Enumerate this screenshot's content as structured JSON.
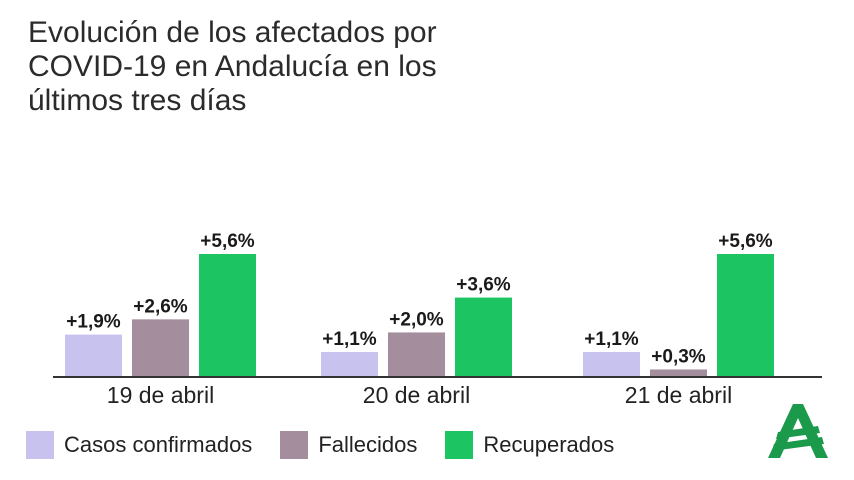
{
  "title": "Evolución de los afectados por COVID-19 en Andalucía en los últimos tres días",
  "colors": {
    "casos": "#c7c3ee",
    "fallecidos": "#a48e9d",
    "recuperados": "#1dc462",
    "axis": "#333333",
    "logo": "#1a9a4a"
  },
  "legend": [
    {
      "label": "Casos confirmados",
      "color": "#c7c3ee"
    },
    {
      "label": "Fallecidos",
      "color": "#a48e9d"
    },
    {
      "label": "Recuperados",
      "color": "#1dc462"
    }
  ],
  "logo_icon": "junta-de-andalucia-logo",
  "chart_data": {
    "type": "bar",
    "title": "Evolución de los afectados por COVID-19 en Andalucía en los últimos tres días",
    "xlabel": "",
    "ylabel": "",
    "unit": "%",
    "ylim": [
      0,
      5.6
    ],
    "grid": false,
    "legend_position": "bottom",
    "categories": [
      "19 de abril",
      "20 de abril",
      "21 de abril"
    ],
    "series": [
      {
        "name": "Casos confirmados",
        "color": "#c7c3ee",
        "values": [
          1.9,
          1.1,
          1.1
        ],
        "labels": [
          "+1,9%",
          "+1,1%",
          "+1,1%"
        ]
      },
      {
        "name": "Fallecidos",
        "color": "#a48e9d",
        "values": [
          2.6,
          2.0,
          0.3
        ],
        "labels": [
          "+2,6%",
          "+2,0%",
          "+0,3%"
        ]
      },
      {
        "name": "Recuperados",
        "color": "#1dc462",
        "values": [
          5.6,
          3.6,
          5.6
        ],
        "labels": [
          "+5,6%",
          "+3,6%",
          "+5,6%"
        ]
      }
    ]
  }
}
